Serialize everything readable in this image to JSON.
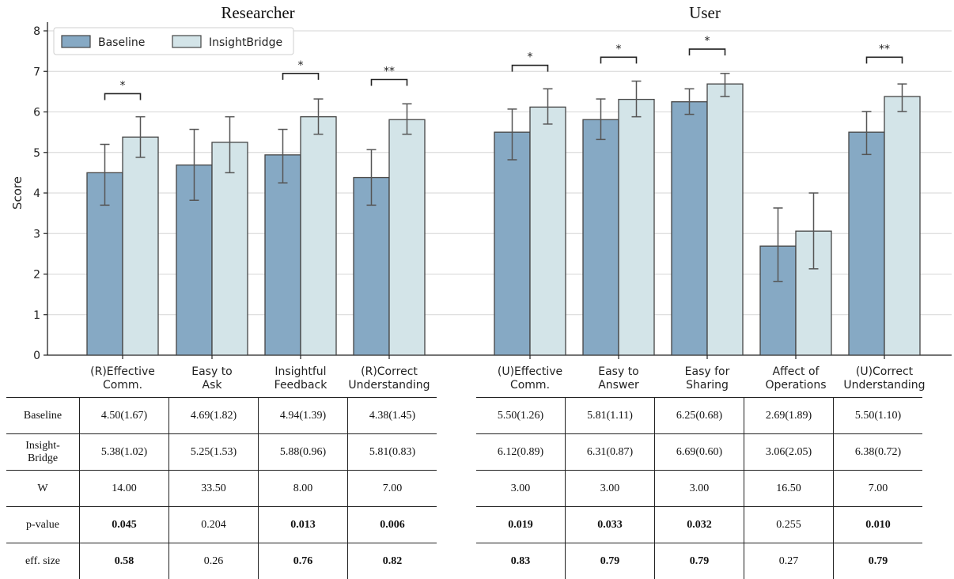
{
  "chart_data": {
    "type": "bar",
    "ylabel": "Score",
    "ylim": [
      0,
      8
    ],
    "yticks": [
      0,
      1,
      2,
      3,
      4,
      5,
      6,
      7,
      8
    ],
    "grid": "horizontal",
    "legend": {
      "placement": "top-left",
      "entries": [
        "Baseline",
        "InsightBridge"
      ]
    },
    "colors": {
      "Baseline": "#86a9c4",
      "InsightBridge": "#d3e4e8",
      "edge": "#444444",
      "error": "#555555"
    },
    "panels": [
      {
        "title": "Researcher",
        "categories": [
          "(R)Effective\nComm.",
          "Easy to\nAsk",
          "Insightful\nFeedback",
          "(R)Correct\nUnderstanding"
        ],
        "series": [
          {
            "name": "Baseline",
            "values": [
              4.5,
              4.69,
              4.94,
              4.38
            ],
            "err_low": [
              3.7,
              3.82,
              4.25,
              3.7
            ],
            "err_high": [
              5.2,
              5.57,
              5.57,
              5.07
            ]
          },
          {
            "name": "InsightBridge",
            "values": [
              5.38,
              5.25,
              5.88,
              5.81
            ],
            "err_low": [
              4.88,
              4.5,
              5.45,
              5.45
            ],
            "err_high": [
              5.88,
              5.88,
              6.32,
              6.2
            ]
          }
        ],
        "significance": [
          "*",
          "",
          "*",
          "**"
        ],
        "sig_heights": [
          6.45,
          null,
          6.95,
          6.8
        ]
      },
      {
        "title": "User",
        "categories": [
          "(U)Effective\nComm.",
          "Easy to\nAnswer",
          "Easy for\nSharing",
          "Affect of\nOperations",
          "(U)Correct\nUnderstanding"
        ],
        "series": [
          {
            "name": "Baseline",
            "values": [
              5.5,
              5.81,
              6.25,
              2.69,
              5.5
            ],
            "err_low": [
              4.82,
              5.32,
              5.94,
              1.82,
              4.95
            ],
            "err_high": [
              6.07,
              6.32,
              6.57,
              3.63,
              6.01
            ]
          },
          {
            "name": "InsightBridge",
            "values": [
              6.12,
              6.31,
              6.69,
              3.06,
              6.38
            ],
            "err_low": [
              5.7,
              5.88,
              6.38,
              2.13,
              6.01
            ],
            "err_high": [
              6.57,
              6.76,
              6.95,
              4.0,
              6.69
            ]
          }
        ],
        "significance": [
          "*",
          "*",
          "*",
          "",
          "**"
        ],
        "sig_heights": [
          7.15,
          7.35,
          7.55,
          null,
          7.35
        ]
      }
    ]
  },
  "table": {
    "row_labels": [
      "Baseline",
      "Insight-\nBridge",
      "W",
      "p-value",
      "eff. size"
    ],
    "bold_rows": [
      false,
      false,
      false,
      true,
      true
    ],
    "researcher": [
      [
        "4.50(1.67)",
        "4.69(1.82)",
        "4.94(1.39)",
        "4.38(1.45)"
      ],
      [
        "5.38(1.02)",
        "5.25(1.53)",
        "5.88(0.96)",
        "5.81(0.83)"
      ],
      [
        "14.00",
        "33.50",
        "8.00",
        "7.00"
      ],
      [
        "0.045",
        "0.204",
        "0.013",
        "0.006"
      ],
      [
        "0.58",
        "0.26",
        "0.76",
        "0.82"
      ]
    ],
    "researcher_bold": [
      [
        false,
        false,
        false,
        false
      ],
      [
        false,
        false,
        false,
        false
      ],
      [
        false,
        false,
        false,
        false
      ],
      [
        true,
        false,
        true,
        true
      ],
      [
        true,
        false,
        true,
        true
      ]
    ],
    "user": [
      [
        "5.50(1.26)",
        "5.81(1.11)",
        "6.25(0.68)",
        "2.69(1.89)",
        "5.50(1.10)"
      ],
      [
        "6.12(0.89)",
        "6.31(0.87)",
        "6.69(0.60)",
        "3.06(2.05)",
        "6.38(0.72)"
      ],
      [
        "3.00",
        "3.00",
        "3.00",
        "16.50",
        "7.00"
      ],
      [
        "0.019",
        "0.033",
        "0.032",
        "0.255",
        "0.010"
      ],
      [
        "0.83",
        "0.79",
        "0.79",
        "0.27",
        "0.79"
      ]
    ],
    "user_bold": [
      [
        false,
        false,
        false,
        false,
        false
      ],
      [
        false,
        false,
        false,
        false,
        false
      ],
      [
        false,
        false,
        false,
        false,
        false
      ],
      [
        true,
        true,
        true,
        false,
        true
      ],
      [
        true,
        true,
        true,
        false,
        true
      ]
    ]
  }
}
